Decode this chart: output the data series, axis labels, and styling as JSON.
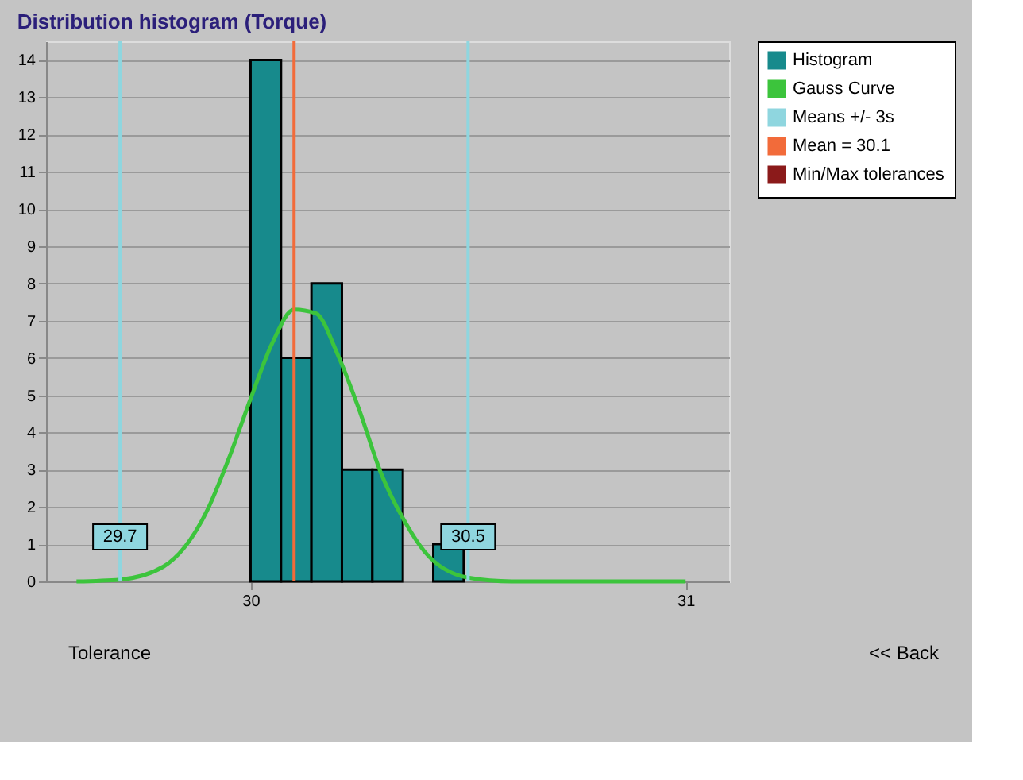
{
  "chart_data": {
    "type": "histogram",
    "title": "Distribution histogram (Torque)",
    "bins": [
      30.0,
      30.07,
      30.14,
      30.21,
      30.28,
      30.35,
      30.42,
      30.49
    ],
    "series": [
      {
        "name": "Histogram",
        "color": "#178a8c",
        "values": [
          14,
          6,
          8,
          3,
          3,
          0,
          1
        ]
      },
      {
        "name": "Gauss Curve",
        "type": "line",
        "color": "#3cc43c",
        "x": [
          29.6,
          29.7,
          29.8,
          29.9,
          29.95,
          30.0,
          30.05,
          30.1,
          30.15,
          30.2,
          30.25,
          30.3,
          30.35,
          30.4,
          30.5,
          30.6,
          30.8,
          31.0
        ],
        "values": [
          0.0,
          0.05,
          0.4,
          1.9,
          3.3,
          4.9,
          6.4,
          7.3,
          7.2,
          6.1,
          4.6,
          2.9,
          1.7,
          0.8,
          0.1,
          0.0,
          0.0,
          0.0
        ]
      },
      {
        "name": "Means +/- 3s",
        "type": "line",
        "color": "#8fd6df"
      },
      {
        "name": "Mean = 30.1",
        "type": "line",
        "color": "#f26b3a"
      },
      {
        "name": "Min/Max tolerances",
        "type": "line",
        "color": "#8b1a1a"
      }
    ],
    "ref_lines": [
      {
        "axis": "x",
        "value": 29.7,
        "label": "29.7",
        "color": "#8fd6df"
      },
      {
        "axis": "x",
        "value": 30.5,
        "label": "30.5",
        "color": "#8fd6df"
      },
      {
        "axis": "x",
        "value": 30.1,
        "color": "#f26b3a"
      }
    ],
    "xlim": [
      29.53,
      31.1
    ],
    "xticks": [
      30,
      31
    ],
    "ylim": [
      0,
      14.5
    ],
    "yticks": [
      0,
      1,
      2,
      3,
      4,
      5,
      6,
      7,
      8,
      9,
      10,
      11,
      12,
      13,
      14
    ],
    "grid": "y",
    "legend": "top right",
    "annotations": [
      "Tolerance",
      "<< Back"
    ]
  }
}
